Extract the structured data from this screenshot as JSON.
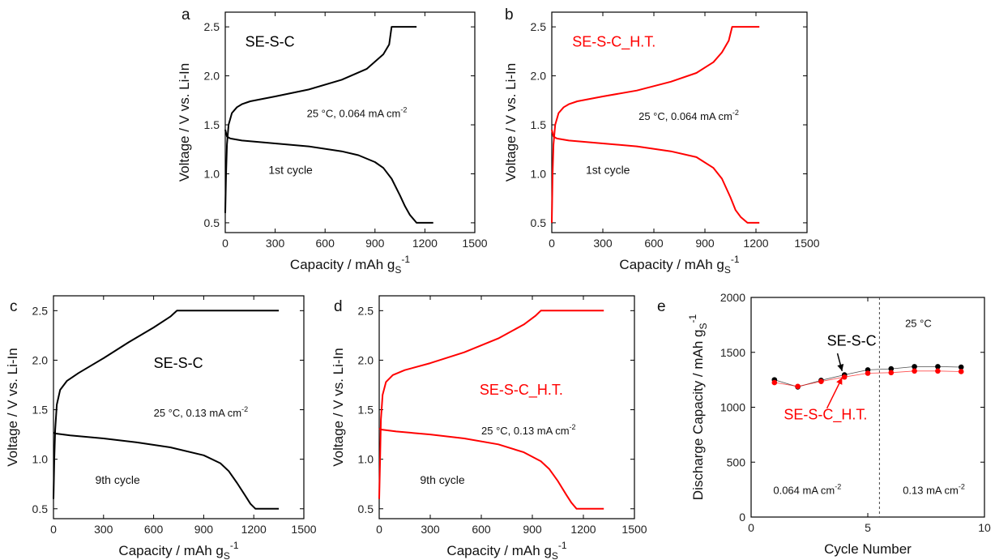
{
  "chart_data": [
    {
      "panel": "a",
      "type": "line",
      "xlabel": "Capacity / mAh g",
      "xlabel_sub": "S",
      "xlabel_sup": "-1",
      "ylabel": "Voltage / V vs. Li-In",
      "xlim": [
        0,
        1500
      ],
      "ylim": [
        0.4,
        2.65
      ],
      "xticks": [
        0,
        300,
        600,
        900,
        1200,
        1500
      ],
      "yticks": [
        0.5,
        1.0,
        1.5,
        2.0,
        2.5
      ],
      "series": [
        {
          "role": "discharge",
          "color": "#000000",
          "x": [
            0,
            10,
            30,
            100,
            300,
            500,
            700,
            800,
            900,
            950,
            1000,
            1050,
            1080,
            1110,
            1150,
            1250
          ],
          "y": [
            1.45,
            1.38,
            1.36,
            1.34,
            1.31,
            1.28,
            1.23,
            1.19,
            1.12,
            1.06,
            0.95,
            0.78,
            0.67,
            0.58,
            0.5,
            0.5
          ]
        },
        {
          "role": "charge",
          "color": "#000000",
          "x": [
            0,
            5,
            10,
            20,
            40,
            70,
            100,
            150,
            300,
            500,
            700,
            850,
            950,
            985,
            1000,
            1150
          ],
          "y": [
            0.6,
            1.0,
            1.3,
            1.5,
            1.62,
            1.68,
            1.71,
            1.74,
            1.79,
            1.86,
            1.96,
            2.07,
            2.22,
            2.32,
            2.5,
            2.5
          ]
        }
      ],
      "annotations": [
        {
          "text": "SE-S-C",
          "x": 120,
          "y": 2.3,
          "color": "#000000",
          "size": "big"
        },
        {
          "text": "25 °C, 0.064 mA cm",
          "sup": "-2",
          "x": 490,
          "y": 1.58,
          "color": "#000000",
          "size": "small"
        },
        {
          "text": "1st cycle",
          "x": 260,
          "y": 1.0,
          "color": "#000000",
          "size": "mid"
        }
      ]
    },
    {
      "panel": "b",
      "type": "line",
      "xlabel": "Capacity / mAh g",
      "xlabel_sub": "S",
      "xlabel_sup": "-1",
      "ylabel": "Voltage / V vs. Li-In",
      "xlim": [
        0,
        1500
      ],
      "ylim": [
        0.4,
        2.65
      ],
      "xticks": [
        0,
        300,
        600,
        900,
        1200,
        1500
      ],
      "yticks": [
        0.5,
        1.0,
        1.5,
        2.0,
        2.5
      ],
      "series": [
        {
          "role": "discharge",
          "color": "#ff0000",
          "x": [
            0,
            10,
            30,
            100,
            300,
            500,
            700,
            850,
            950,
            1000,
            1050,
            1080,
            1110,
            1150,
            1220
          ],
          "y": [
            1.45,
            1.38,
            1.36,
            1.34,
            1.31,
            1.28,
            1.23,
            1.17,
            1.06,
            0.95,
            0.76,
            0.63,
            0.56,
            0.5,
            0.5
          ]
        },
        {
          "role": "charge",
          "color": "#ff0000",
          "x": [
            0,
            5,
            10,
            20,
            40,
            70,
            100,
            150,
            300,
            500,
            700,
            850,
            950,
            1000,
            1040,
            1060,
            1220
          ],
          "y": [
            0.5,
            1.0,
            1.3,
            1.5,
            1.62,
            1.68,
            1.71,
            1.74,
            1.79,
            1.85,
            1.94,
            2.03,
            2.14,
            2.24,
            2.36,
            2.5,
            2.5
          ]
        }
      ],
      "annotations": [
        {
          "text": "SE-S-C_H.T.",
          "x": 120,
          "y": 2.3,
          "color": "#ff0000",
          "size": "big"
        },
        {
          "text": "25 °C, 0.064 mA cm",
          "sup": "-2",
          "x": 510,
          "y": 1.55,
          "color": "#000000",
          "size": "small"
        },
        {
          "text": "1st cycle",
          "x": 200,
          "y": 1.0,
          "color": "#000000",
          "size": "mid"
        }
      ]
    },
    {
      "panel": "c",
      "type": "line",
      "xlabel": "Capacity / mAh g",
      "xlabel_sub": "S",
      "xlabel_sup": "-1",
      "ylabel": "Voltage / V vs. Li-In",
      "xlim": [
        0,
        1500
      ],
      "ylim": [
        0.4,
        2.65
      ],
      "xticks": [
        0,
        300,
        600,
        900,
        1200,
        1500
      ],
      "yticks": [
        0.5,
        1.0,
        1.5,
        2.0,
        2.5
      ],
      "series": [
        {
          "role": "discharge",
          "color": "#000000",
          "x": [
            0,
            10,
            100,
            300,
            500,
            700,
            900,
            1000,
            1050,
            1100,
            1150,
            1180,
            1210,
            1350
          ],
          "y": [
            1.27,
            1.26,
            1.24,
            1.21,
            1.17,
            1.12,
            1.04,
            0.96,
            0.88,
            0.76,
            0.63,
            0.55,
            0.5,
            0.5
          ]
        },
        {
          "role": "charge",
          "color": "#000000",
          "x": [
            0,
            5,
            10,
            20,
            40,
            80,
            150,
            300,
            450,
            600,
            700,
            740,
            1350
          ],
          "y": [
            0.6,
            1.0,
            1.3,
            1.55,
            1.7,
            1.79,
            1.87,
            2.02,
            2.18,
            2.33,
            2.44,
            2.5,
            2.5
          ]
        }
      ],
      "annotations": [
        {
          "text": "SE-S-C",
          "x": 600,
          "y": 1.92,
          "color": "#000000",
          "size": "big"
        },
        {
          "text": "25 °C, 0.13 mA cm",
          "sup": "-2",
          "x": 600,
          "y": 1.43,
          "color": "#000000",
          "size": "small"
        },
        {
          "text": "9th cycle",
          "x": 250,
          "y": 0.75,
          "color": "#000000",
          "size": "mid"
        }
      ]
    },
    {
      "panel": "d",
      "type": "line",
      "xlabel": "Capacity / mAh g",
      "xlabel_sub": "S",
      "xlabel_sup": "-1",
      "ylabel": "Voltage / V vs. Li-In",
      "xlim": [
        0,
        1500
      ],
      "ylim": [
        0.4,
        2.65
      ],
      "xticks": [
        0,
        300,
        600,
        900,
        1200,
        1500
      ],
      "yticks": [
        0.5,
        1.0,
        1.5,
        2.0,
        2.5
      ],
      "series": [
        {
          "role": "discharge",
          "color": "#ff0000",
          "x": [
            0,
            10,
            100,
            300,
            500,
            700,
            850,
            950,
            1000,
            1050,
            1100,
            1130,
            1160,
            1320
          ],
          "y": [
            1.31,
            1.3,
            1.28,
            1.25,
            1.21,
            1.15,
            1.07,
            0.98,
            0.9,
            0.78,
            0.64,
            0.56,
            0.5,
            0.5
          ]
        },
        {
          "role": "charge",
          "color": "#ff0000",
          "x": [
            0,
            5,
            10,
            20,
            40,
            80,
            150,
            300,
            500,
            700,
            850,
            920,
            950,
            1320
          ],
          "y": [
            0.6,
            1.0,
            1.4,
            1.65,
            1.78,
            1.85,
            1.9,
            1.97,
            2.08,
            2.22,
            2.36,
            2.45,
            2.5,
            2.5
          ]
        }
      ],
      "annotations": [
        {
          "text": "SE-S-C_H.T.",
          "x": 590,
          "y": 1.65,
          "color": "#ff0000",
          "size": "big"
        },
        {
          "text": "25 °C, 0.13 mA cm",
          "sup": "-2",
          "x": 600,
          "y": 1.25,
          "color": "#000000",
          "size": "small"
        },
        {
          "text": "9th cycle",
          "x": 240,
          "y": 0.75,
          "color": "#000000",
          "size": "mid"
        }
      ]
    },
    {
      "panel": "e",
      "type": "scatter",
      "xlabel": "Cycle Number",
      "ylabel": "Discharge Capacity / mAh g",
      "ylabel_sub": "S",
      "ylabel_sup": "-1",
      "xlim": [
        0,
        10
      ],
      "ylim": [
        0,
        2000
      ],
      "xticks": [
        0,
        5,
        10
      ],
      "yticks": [
        0,
        500,
        1000,
        1500,
        2000
      ],
      "divider_x": 5.5,
      "series": [
        {
          "name": "SE-S-C",
          "color": "#000000",
          "x": [
            1,
            2,
            3,
            4,
            5,
            6,
            7,
            8,
            9
          ],
          "y": [
            1250,
            1185,
            1245,
            1295,
            1340,
            1350,
            1370,
            1370,
            1365
          ]
        },
        {
          "name": "SE-S-C_H.T.",
          "color": "#ff0000",
          "x": [
            1,
            2,
            3,
            4,
            5,
            6,
            7,
            8,
            9
          ],
          "y": [
            1225,
            1190,
            1235,
            1275,
            1310,
            1315,
            1330,
            1330,
            1325
          ]
        }
      ],
      "annotations": [
        {
          "text": "SE-S-C",
          "x": 3.25,
          "y": 1560,
          "color": "#000000",
          "size": "big"
        },
        {
          "text": "SE-S-C_H.T.",
          "x": 1.4,
          "y": 890,
          "color": "#ff0000",
          "size": "big"
        },
        {
          "text": "25 °C",
          "x": 6.6,
          "y": 1730,
          "color": "#000000",
          "size": "small"
        },
        {
          "text": "0.064 mA cm",
          "sup": "-2",
          "x": 0.95,
          "y": 210,
          "color": "#000000",
          "size": "small"
        },
        {
          "text": "0.13 mA cm",
          "sup": "-2",
          "x": 6.5,
          "y": 210,
          "color": "#000000",
          "size": "small"
        }
      ],
      "arrows": [
        {
          "from": [
            3.7,
            1490
          ],
          "to": [
            3.9,
            1330
          ],
          "color": "#000000"
        },
        {
          "from": [
            3.25,
            990
          ],
          "to": [
            3.9,
            1270
          ],
          "color": "#ff0000"
        }
      ]
    }
  ]
}
